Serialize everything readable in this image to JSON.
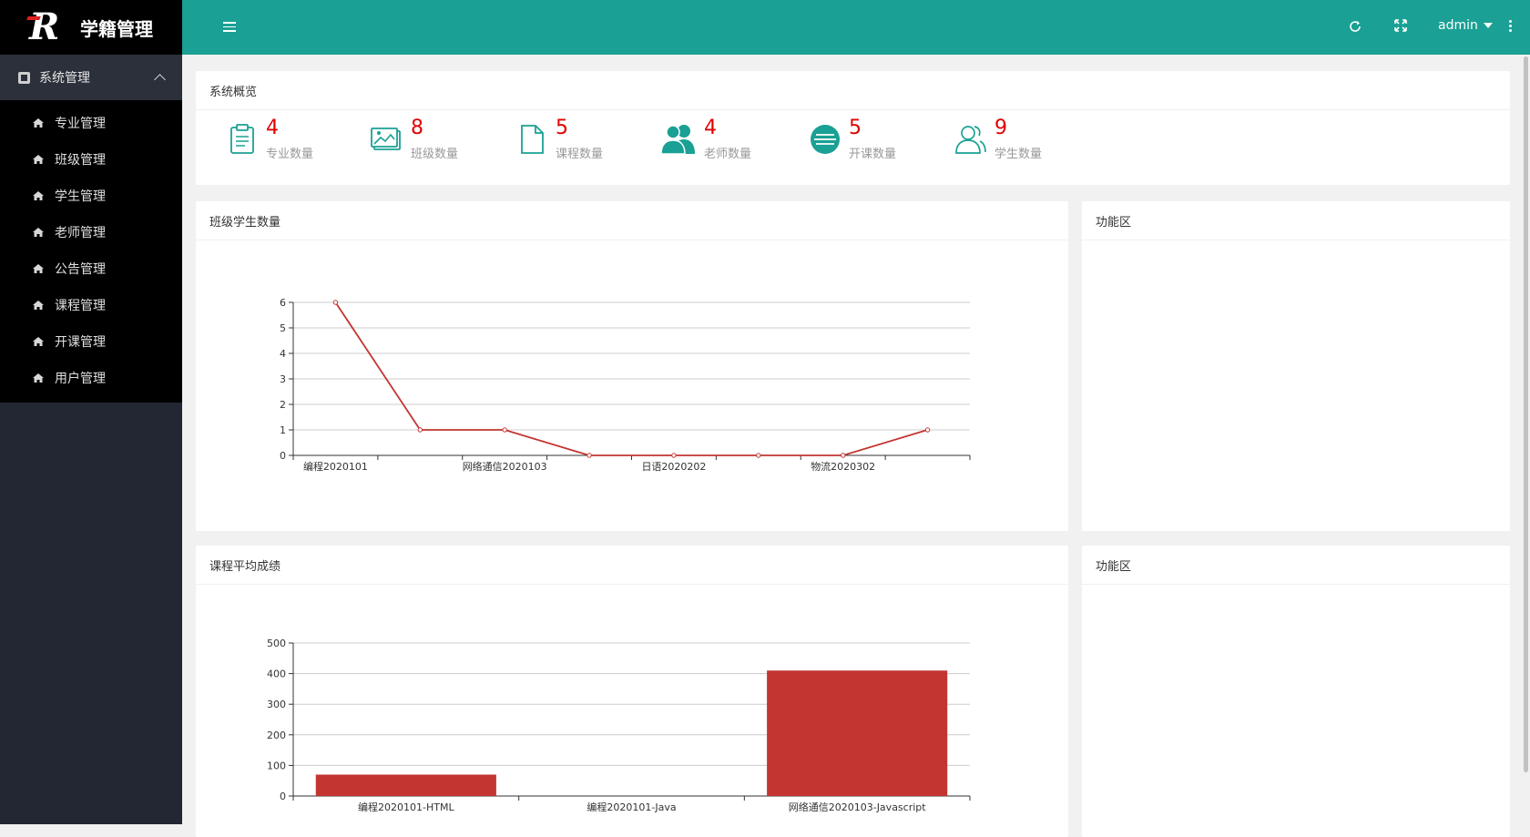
{
  "app": {
    "title": "学籍管理",
    "logo_letter": "R"
  },
  "sidebar": {
    "group_label": "系统管理",
    "items": [
      {
        "label": "专业管理"
      },
      {
        "label": "班级管理"
      },
      {
        "label": "学生管理"
      },
      {
        "label": "老师管理"
      },
      {
        "label": "公告管理"
      },
      {
        "label": "课程管理"
      },
      {
        "label": "开课管理"
      },
      {
        "label": "用户管理"
      }
    ]
  },
  "header": {
    "user": "admin",
    "icons": [
      "menu-toggle-icon",
      "refresh-icon",
      "fullscreen-icon",
      "more-icon"
    ]
  },
  "overview": {
    "title": "系统概览",
    "stats": [
      {
        "value": "4",
        "label": "专业数量",
        "icon": "clipboard-icon"
      },
      {
        "value": "8",
        "label": "班级数量",
        "icon": "image-icon"
      },
      {
        "value": "5",
        "label": "课程数量",
        "icon": "file-icon"
      },
      {
        "value": "4",
        "label": "老师数量",
        "icon": "users-icon"
      },
      {
        "value": "5",
        "label": "开课数量",
        "icon": "list-circle-icon"
      },
      {
        "value": "9",
        "label": "学生数量",
        "icon": "user-group-icon"
      }
    ],
    "accent_color": "#1aa094",
    "value_color": "#e00000"
  },
  "panels": {
    "chart1_title": "班级学生数量",
    "chart2_title": "课程平均成绩",
    "func1_title": "功能区",
    "func2_title": "功能区"
  },
  "chart_data": [
    {
      "type": "line",
      "title": "班级学生数量",
      "categories": [
        "编程2020101",
        "",
        "网络通信2020103",
        "",
        "日语2020202",
        "",
        "物流2020302",
        ""
      ],
      "values": [
        6,
        1,
        1,
        0,
        0,
        0,
        0,
        1
      ],
      "ylim": [
        0,
        6
      ],
      "yticks": [
        0,
        1,
        2,
        3,
        4,
        5,
        6
      ],
      "color": "#c23531",
      "grid": true
    },
    {
      "type": "bar",
      "title": "课程平均成绩",
      "categories": [
        "编程2020101-HTML",
        "编程2020101-Java",
        "网络通信2020103-Javascript"
      ],
      "values": [
        70,
        0,
        410
      ],
      "ylim": [
        0,
        500
      ],
      "yticks": [
        0,
        100,
        200,
        300,
        400,
        500
      ],
      "color": "#c23531",
      "grid": true
    }
  ]
}
